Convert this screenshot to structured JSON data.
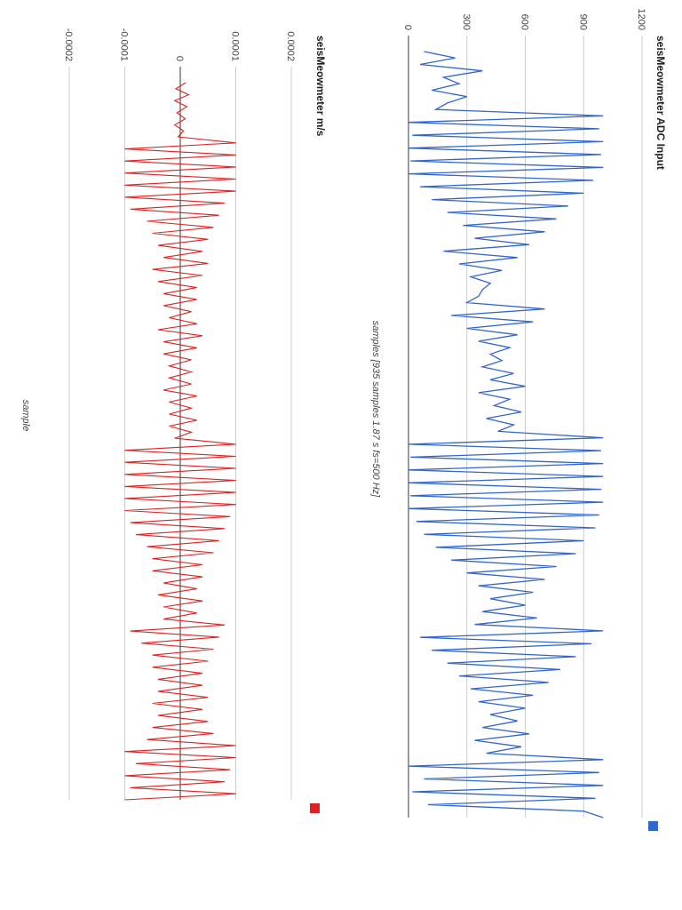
{
  "chart_data": [
    {
      "type": "line",
      "title": "seisMeowmeter ADC Input",
      "xlabel": "samples [935 samples 1.87 s fs=500 Hz]",
      "ylabel": "",
      "ylim": [
        0,
        1200
      ],
      "yticks": [
        0,
        300,
        600,
        900,
        1200
      ],
      "xlim": [
        0,
        935
      ],
      "grid": true,
      "legend": "top-right",
      "color": "#3366cc",
      "series": [
        {
          "values": [
            80,
            240,
            60,
            380,
            180,
            260,
            120,
            300,
            200,
            140,
            1000,
            0,
            980,
            20,
            1000,
            0,
            990,
            10,
            1000,
            0,
            950,
            60,
            900,
            120,
            820,
            200,
            760,
            280,
            700,
            340,
            620,
            180,
            560,
            260,
            480,
            320,
            420,
            380,
            360,
            300,
            700,
            220,
            640,
            300,
            560,
            360,
            520,
            420,
            480,
            380,
            540,
            420,
            600,
            360,
            520,
            440,
            580,
            400,
            540,
            460,
            1000,
            0,
            990,
            10,
            1000,
            0,
            1000,
            0,
            990,
            10,
            1000,
            0,
            980,
            40,
            960,
            80,
            900,
            140,
            860,
            220,
            760,
            300,
            700,
            360,
            640,
            420,
            600,
            380,
            660,
            340,
            1000,
            60,
            940,
            120,
            860,
            200,
            780,
            260,
            720,
            320,
            640,
            360,
            600,
            420,
            560,
            380,
            620,
            340,
            580,
            400,
            1000,
            0,
            980,
            80,
            1000,
            20,
            960,
            100,
            900,
            1000
          ]
        }
      ]
    },
    {
      "type": "line",
      "title": "seisMeowmeter m/s",
      "xlabel": "sample",
      "ylabel": "",
      "ylim": [
        -0.0002,
        0.0002
      ],
      "yticks": [
        -0.0002,
        -0.0001,
        0,
        0.0001,
        0.0002
      ],
      "ytick_labels": [
        "-0.0002",
        "-0.0001",
        "0",
        "0.0001",
        "0.0002"
      ],
      "xlim": [
        0,
        935
      ],
      "grid": true,
      "legend": "top-right",
      "color": "#dd2222",
      "series": [
        {
          "values": [
            1e-05,
            -8e-06,
            1.5e-05,
            -1e-05,
            1.2e-05,
            -6e-06,
            9e-06,
            -1e-05,
            6e-06,
            -4e-06,
            0.0001,
            -0.0001,
            0.0001,
            -0.0001,
            0.0001,
            -0.0001,
            0.0001,
            -0.0001,
            0.0001,
            -0.0001,
            8e-05,
            -9e-05,
            7e-05,
            -6e-05,
            6e-05,
            -5e-05,
            5e-05,
            -4e-05,
            4e-05,
            -3e-05,
            5e-05,
            -5e-05,
            4e-05,
            -4e-05,
            3e-05,
            -3e-05,
            3e-05,
            -3e-05,
            2e-05,
            -2e-05,
            3e-05,
            -4e-05,
            4e-05,
            -3e-05,
            3e-05,
            -3e-05,
            2e-05,
            -2e-05,
            2e-05,
            -2e-05,
            2e-05,
            -3e-05,
            3e-05,
            -2e-05,
            2e-05,
            -2e-05,
            3e-05,
            -2e-05,
            2e-05,
            -1e-05,
            0.0001,
            -0.0001,
            0.0001,
            -0.0001,
            0.0001,
            -0.0001,
            0.0001,
            -0.0001,
            0.0001,
            -0.0001,
            0.0001,
            -0.0001,
            9e-05,
            -9e-05,
            8e-05,
            -8e-05,
            7e-05,
            -6e-05,
            6e-05,
            -5e-05,
            4e-05,
            -5e-05,
            4e-05,
            -3e-05,
            3e-05,
            -4e-05,
            4e-05,
            -3e-05,
            3e-05,
            -3e-05,
            8e-05,
            -9e-05,
            7e-05,
            -7e-05,
            6e-05,
            -5e-05,
            5e-05,
            -5e-05,
            4e-05,
            -4e-05,
            4e-05,
            -4e-05,
            5e-05,
            -5e-05,
            4e-05,
            -4e-05,
            5e-05,
            -5e-05,
            6e-05,
            -6e-05,
            0.0001,
            -0.0001,
            0.0001,
            -8e-05,
            9e-05,
            -0.0001,
            8e-05,
            -9e-05,
            0.0001,
            -0.0001
          ]
        }
      ]
    }
  ]
}
